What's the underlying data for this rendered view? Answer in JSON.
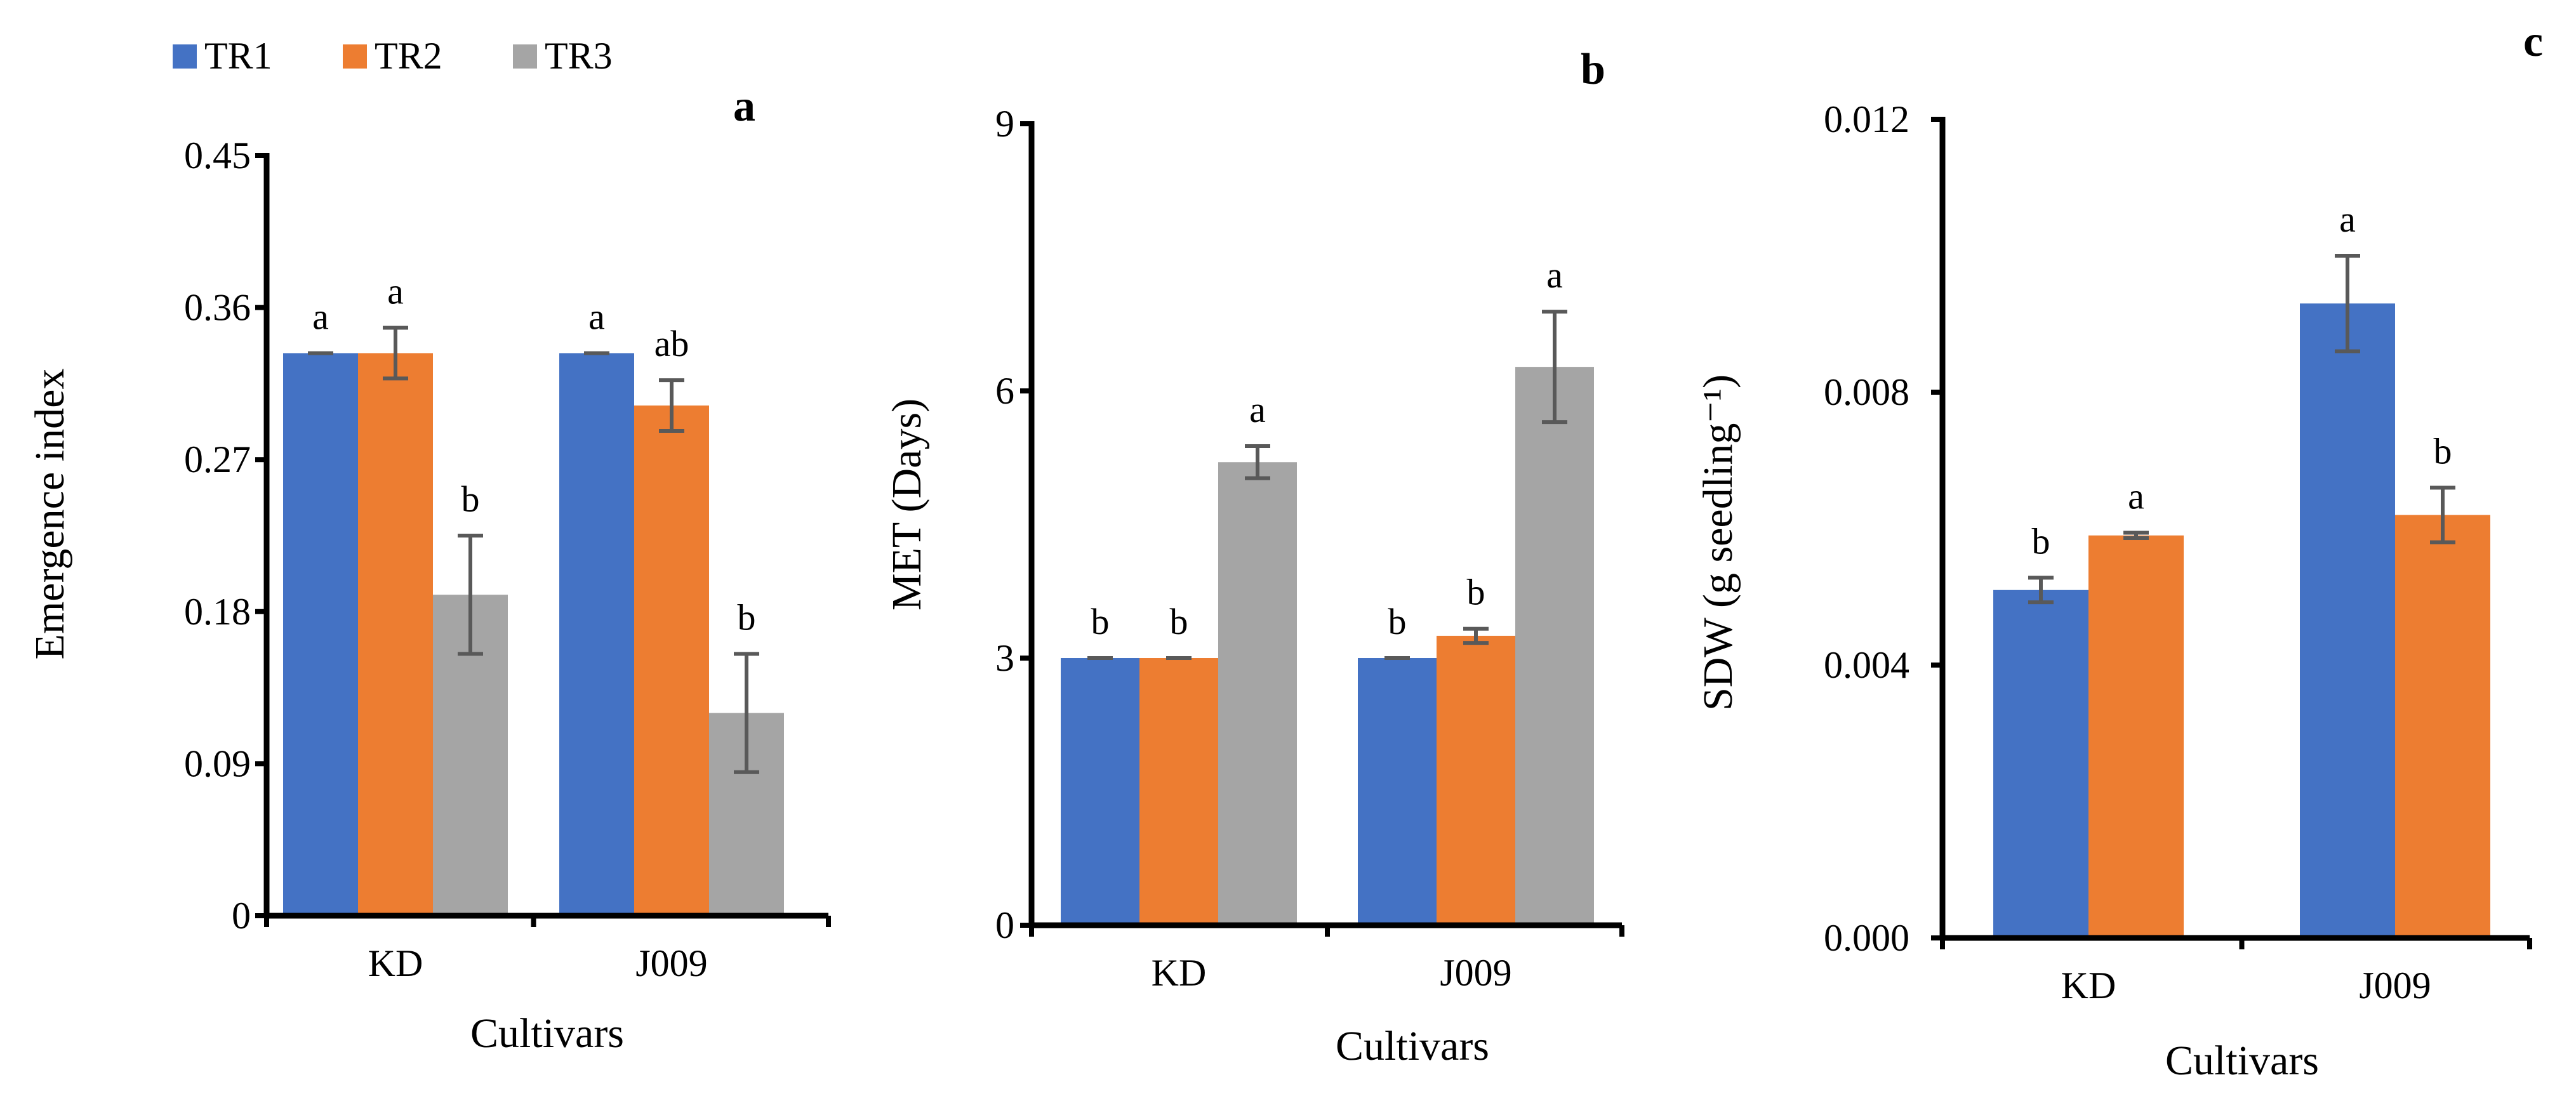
{
  "colors": {
    "TR1": "#4472C4",
    "TR2": "#ED7D31",
    "TR3": "#A5A5A5",
    "errbar": "#595959",
    "axis": "#000000"
  },
  "legend": {
    "position": "top-left",
    "items": [
      {
        "name": "TR1",
        "label": "TR1"
      },
      {
        "name": "TR2",
        "label": "TR2"
      },
      {
        "name": "TR3",
        "label": "TR3"
      }
    ]
  },
  "chart_data": [
    {
      "panel": "a",
      "type": "bar",
      "title": "",
      "xlabel": "Cultivars",
      "ylabel": "Emergence index",
      "categories": [
        "KD",
        "J009"
      ],
      "ylim": [
        0,
        0.45
      ],
      "yticks": [
        0,
        0.09,
        0.18,
        0.27,
        0.36,
        0.45
      ],
      "ytick_labels": [
        "0",
        "0.09",
        "0.18",
        "0.27",
        "0.36",
        "0.45"
      ],
      "series": [
        {
          "name": "TR1",
          "values": [
            0.333,
            0.333
          ],
          "errors": [
            0.0,
            0.0
          ],
          "letters": [
            "a",
            "a"
          ]
        },
        {
          "name": "TR2",
          "values": [
            0.333,
            0.302
          ],
          "errors": [
            0.015,
            0.015
          ],
          "letters": [
            "a",
            "ab"
          ]
        },
        {
          "name": "TR3",
          "values": [
            0.19,
            0.12
          ],
          "errors": [
            0.035,
            0.035
          ],
          "letters": [
            "b",
            "b"
          ]
        }
      ]
    },
    {
      "panel": "b",
      "type": "bar",
      "title": "",
      "xlabel": "Cultivars",
      "ylabel": "MET (Days)",
      "categories": [
        "KD",
        "J009"
      ],
      "ylim": [
        0,
        9
      ],
      "yticks": [
        0,
        3,
        6,
        9
      ],
      "ytick_labels": [
        "0",
        "3",
        "6",
        "9"
      ],
      "series": [
        {
          "name": "TR1",
          "values": [
            3.0,
            3.0
          ],
          "errors": [
            0.0,
            0.0
          ],
          "letters": [
            "b",
            "b"
          ]
        },
        {
          "name": "TR2",
          "values": [
            3.0,
            3.25
          ],
          "errors": [
            0.0,
            0.08
          ],
          "letters": [
            "b",
            "b"
          ]
        },
        {
          "name": "TR3",
          "values": [
            5.2,
            6.27
          ],
          "errors": [
            0.18,
            0.62
          ],
          "letters": [
            "a",
            "a"
          ]
        }
      ]
    },
    {
      "panel": "c",
      "type": "bar",
      "title": "",
      "xlabel": "Cultivars",
      "ylabel": "SDW (g seedling⁻¹)",
      "categories": [
        "KD",
        "J009"
      ],
      "ylim": [
        0,
        0.012
      ],
      "yticks": [
        0,
        0.004,
        0.008,
        0.012
      ],
      "ytick_labels": [
        "0.000",
        "0.004",
        "0.008",
        "0.012"
      ],
      "series": [
        {
          "name": "TR1",
          "values": [
            0.0051,
            0.0093
          ],
          "errors": [
            0.00018,
            0.0007
          ],
          "letters": [
            "b",
            "a"
          ]
        },
        {
          "name": "TR2",
          "values": [
            0.0059,
            0.0062
          ],
          "errors": [
            4e-05,
            0.0004
          ],
          "letters": [
            "a",
            "b"
          ]
        }
      ]
    }
  ]
}
